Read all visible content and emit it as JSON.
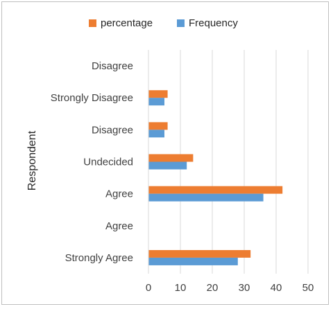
{
  "chart_data": {
    "type": "bar",
    "orientation": "horizontal",
    "categories": [
      "Disagree",
      "Strongly Disagree",
      "Disagree",
      "Undecided",
      "Agree",
      "Agree",
      "Strongly Agree"
    ],
    "series": [
      {
        "name": "percentage",
        "color": "#ED7D31",
        "values": [
          null,
          6,
          6,
          14,
          42,
          null,
          32
        ]
      },
      {
        "name": "Frequency",
        "color": "#5B9BD5",
        "values": [
          null,
          5,
          5,
          12,
          36,
          null,
          28
        ]
      }
    ],
    "xlim": [
      0,
      50
    ],
    "xticks": [
      0,
      10,
      20,
      30,
      40,
      50
    ],
    "ylabel": "Respondent",
    "xlabel": "",
    "grid": "vertical",
    "legend_position": "top"
  }
}
